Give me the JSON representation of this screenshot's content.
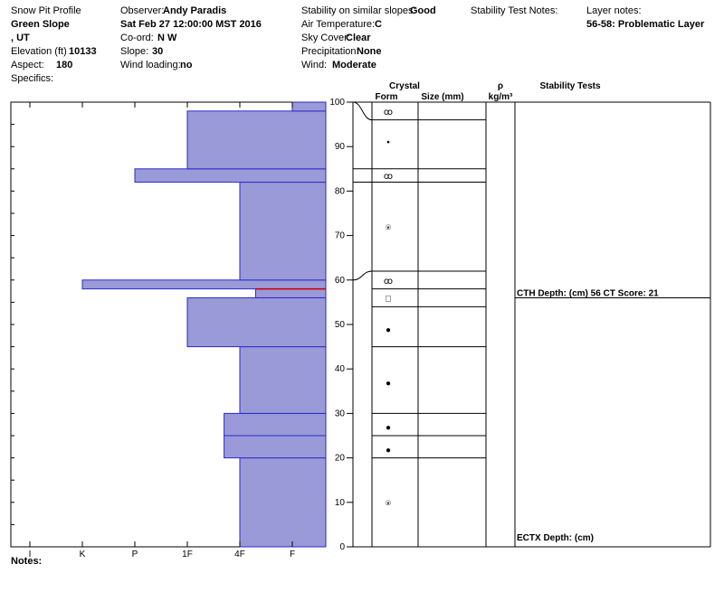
{
  "header": {
    "title": "Snow Pit Profile",
    "location_name": "Green Slope",
    "region": ", UT",
    "elevation_label": "Elevation (ft)",
    "elevation_value": "10133",
    "aspect_label": "Aspect:",
    "aspect_value": "180",
    "specifics_label": "Specifics:",
    "observer_label": "Observer:",
    "observer_value": "Andy Paradis",
    "datetime": "Sat Feb 27 12:00:00 MST 2016",
    "coord_label": "Co-ord:",
    "coord_value": "N  W",
    "slope_label": "Slope:",
    "slope_value": "30",
    "wind_loading_label": "Wind loading:",
    "wind_loading_value": "no",
    "stability_label": "Stability on similar slopes:",
    "stability_value": "Good",
    "air_temp_label": "Air Temperature:",
    "air_temp_value": "C",
    "sky_label": "Sky Cover:",
    "sky_value": "Clear",
    "precip_label": "Precipitation:",
    "precip_value": "None",
    "wind_label": "Wind:",
    "wind_value": "Moderate",
    "stability_notes_label": "Stability Test Notes:",
    "layer_notes_label": "Layer notes:",
    "layer_notes_value": "56-58: Problematic Layer",
    "notes_label": "Notes:"
  },
  "colors": {
    "hardness_fill": "#9a9ad8",
    "hardness_stroke": "#2a2acc",
    "weak_layer": "#cc0000"
  },
  "chart_data": {
    "type": "bar",
    "orientation": "horizontal",
    "y_axis": {
      "min": 0,
      "max": 100,
      "ticks": [
        "0",
        "10",
        "20",
        "30",
        "40",
        "50",
        "60",
        "70",
        "80",
        "90",
        "100"
      ]
    },
    "x_axis_hardness": [
      "I",
      "K",
      "P",
      "1F",
      "4F",
      "F"
    ],
    "hardness_layers": [
      {
        "bottom": 0,
        "top": 20,
        "hardness": 4.0
      },
      {
        "bottom": 20,
        "top": 25,
        "hardness": 3.7
      },
      {
        "bottom": 25,
        "top": 30,
        "hardness": 3.7
      },
      {
        "bottom": 30,
        "top": 45,
        "hardness": 4.0
      },
      {
        "bottom": 45,
        "top": 56,
        "hardness": 3.0
      },
      {
        "bottom": 56,
        "top": 58,
        "hardness": 4.3
      },
      {
        "bottom": 58,
        "top": 60,
        "hardness": 1.0
      },
      {
        "bottom": 60,
        "top": 82,
        "hardness": 4.0
      },
      {
        "bottom": 82,
        "top": 85,
        "hardness": 2.0
      },
      {
        "bottom": 85,
        "top": 98,
        "hardness": 3.0
      },
      {
        "bottom": 98,
        "top": 100,
        "hardness": 5.0
      }
    ],
    "weak_layer_depth": 58,
    "layer_boundaries": [
      20,
      25,
      30,
      45,
      54,
      58,
      62,
      82,
      85,
      96
    ],
    "crystal_markers": [
      {
        "height": 98,
        "symbol": "ꝏ"
      },
      {
        "height": 91,
        "symbol": "•"
      },
      {
        "height": 83.5,
        "symbol": "ꝏ"
      },
      {
        "height": 72,
        "symbol": "⍟"
      },
      {
        "height": 60,
        "symbol": "ꝏ"
      },
      {
        "height": 56,
        "symbol": "□"
      },
      {
        "height": 49,
        "symbol": "●"
      },
      {
        "height": 37,
        "symbol": "●"
      },
      {
        "height": 27,
        "symbol": "●"
      },
      {
        "height": 22,
        "symbol": "●"
      },
      {
        "height": 10,
        "symbol": "⍟"
      }
    ],
    "column_headers": {
      "crystal": "Crystal",
      "form": "Form",
      "size": "Size (mm)",
      "rho": "ρ",
      "density_unit": "kg/m³",
      "stability_tests": "Stability Tests"
    },
    "stability_tests": [
      {
        "height": 56,
        "text": "CTH   Depth: (cm) 56 CT Score: 21"
      },
      {
        "height": 1,
        "text": "ECTX   Depth: (cm)"
      }
    ]
  }
}
